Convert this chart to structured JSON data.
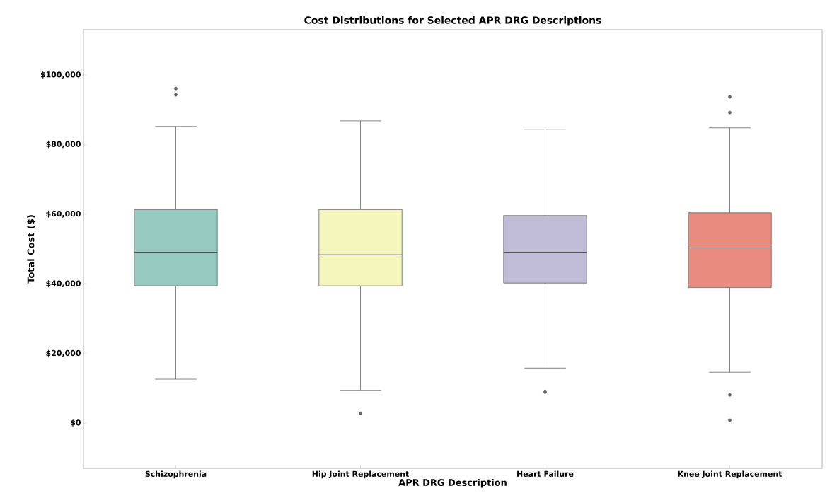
{
  "chart_data": {
    "type": "box",
    "title": "Cost Distributions for Selected APR DRG Descriptions",
    "xlabel": "APR DRG Description",
    "ylabel": "Total Cost ($)",
    "categories": [
      "Schizophrenia",
      "Hip Joint Replacement",
      "Heart Failure",
      "Knee Joint Replacement"
    ],
    "colors": [
      "#96cac1",
      "#f5f6bb",
      "#c1bdd7",
      "#ea8b80"
    ],
    "boxes": [
      {
        "low": 12600,
        "q1": 39400,
        "median": 49000,
        "q3": 61300,
        "high": 85200,
        "outliers": [
          94300,
          96100
        ]
      },
      {
        "low": 9300,
        "q1": 39400,
        "median": 48300,
        "q3": 61300,
        "high": 86800,
        "outliers": [
          2800
        ]
      },
      {
        "low": 15800,
        "q1": 40200,
        "median": 49000,
        "q3": 59600,
        "high": 84400,
        "outliers": [
          8900
        ]
      },
      {
        "low": 14600,
        "q1": 38900,
        "median": 50300,
        "q3": 60400,
        "high": 84800,
        "outliers": [
          800,
          8100,
          89200,
          93700
        ]
      }
    ],
    "ylim": [
      -13000,
      113000
    ],
    "yticks": [
      {
        "value": 0,
        "label": "$0"
      },
      {
        "value": 20000,
        "label": "$20,000"
      },
      {
        "value": 40000,
        "label": "$40,000"
      },
      {
        "value": 60000,
        "label": "$60,000"
      },
      {
        "value": 80000,
        "label": "$80,000"
      },
      {
        "value": 100000,
        "label": "$100,000"
      }
    ],
    "grid": false
  }
}
